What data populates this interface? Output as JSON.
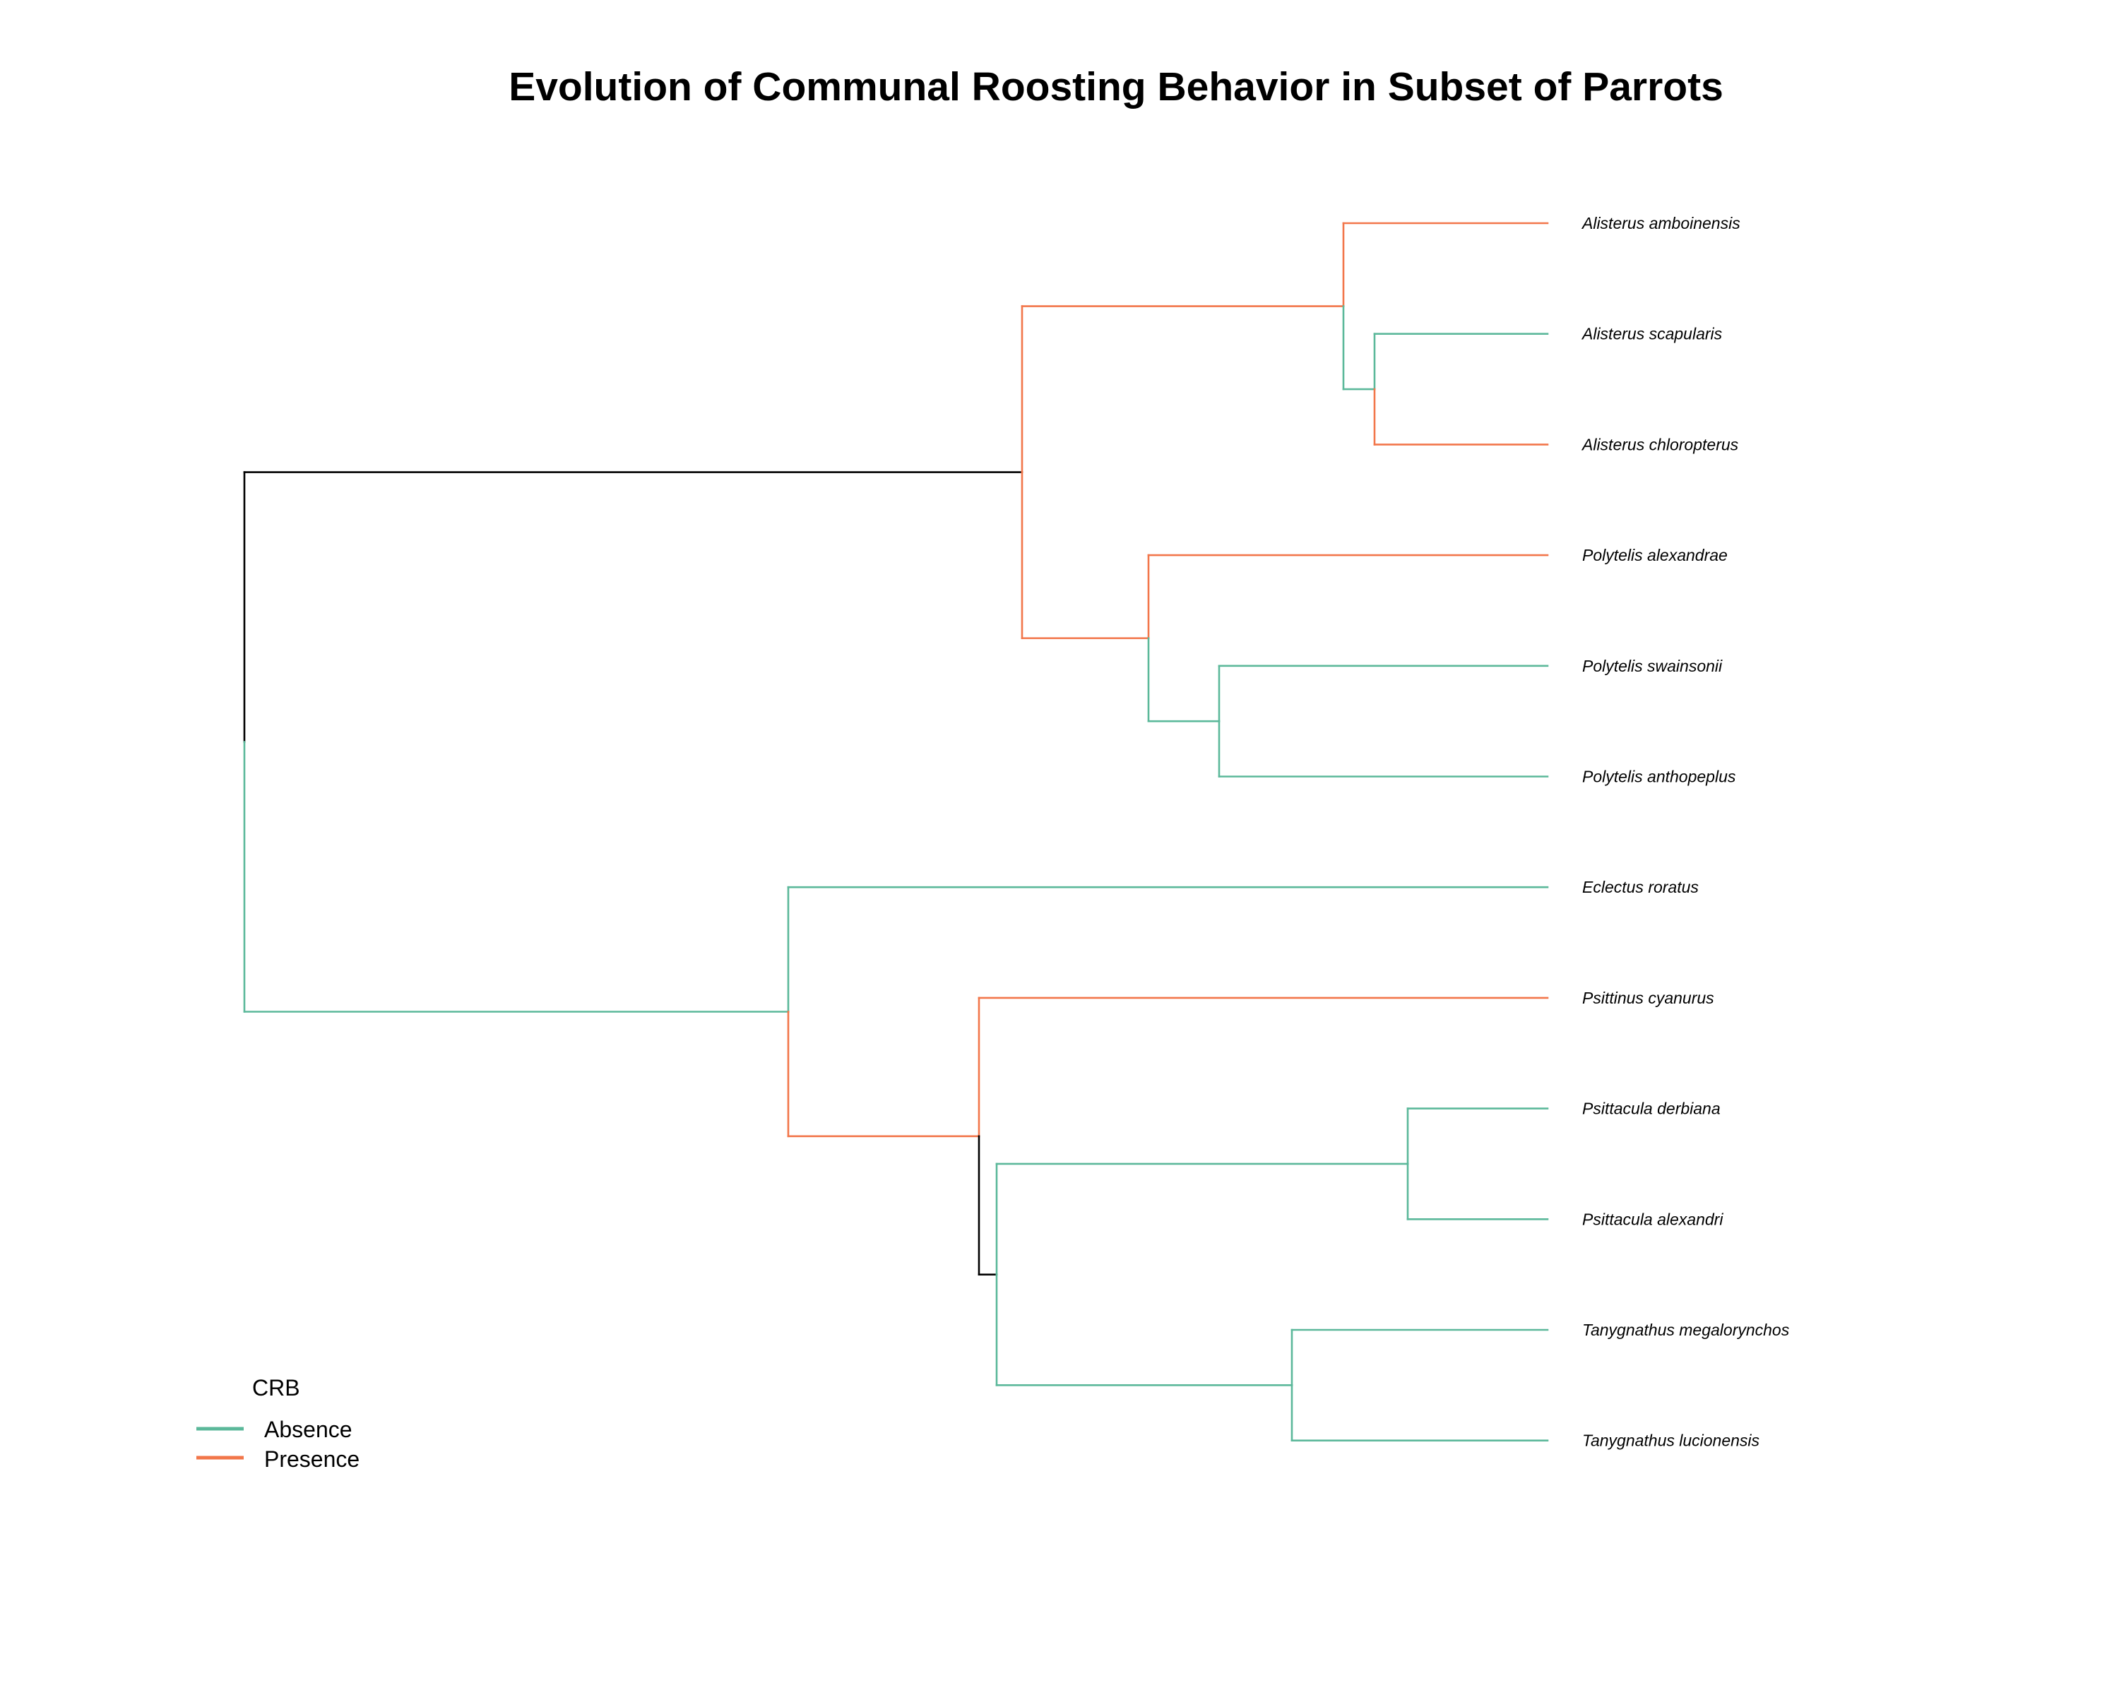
{
  "title": "Evolution of Communal Roosting Behavior in Subset of Parrots",
  "colors": {
    "absence": "#5bb89a",
    "presence": "#f2764a",
    "internal": "#000000"
  },
  "legend": {
    "title": "CRB",
    "items": [
      {
        "label": "Absence",
        "state": "absence"
      },
      {
        "label": "Presence",
        "state": "presence"
      }
    ]
  },
  "tips": [
    {
      "id": "t1",
      "label": "Alisterus amboinensis"
    },
    {
      "id": "t2",
      "label": "Alisterus scapularis"
    },
    {
      "id": "t3",
      "label": "Alisterus chloropterus"
    },
    {
      "id": "t4",
      "label": "Polytelis alexandrae"
    },
    {
      "id": "t5",
      "label": "Polytelis swainsonii"
    },
    {
      "id": "t6",
      "label": "Polytelis anthopeplus"
    },
    {
      "id": "t7",
      "label": "Eclectus roratus"
    },
    {
      "id": "t8",
      "label": "Psittinus cyanurus"
    },
    {
      "id": "t9",
      "label": "Psittacula derbiana"
    },
    {
      "id": "t10",
      "label": "Psittacula alexandri"
    },
    {
      "id": "t11",
      "label": "Tanygnathus megalorynchos"
    },
    {
      "id": "t12",
      "label": "Tanygnathus lucionensis"
    }
  ],
  "tree": {
    "state": "internal",
    "children": [
      {
        "state": "internal",
        "children": [
          {
            "state": "presence",
            "children": [
              {
                "tip": "t1",
                "state": "presence"
              },
              {
                "state": "absence",
                "children": [
                  {
                    "tip": "t2",
                    "state": "absence"
                  },
                  {
                    "tip": "t3",
                    "state": "presence"
                  }
                ]
              }
            ]
          },
          {
            "state": "presence",
            "children": [
              {
                "tip": "t4",
                "state": "presence"
              },
              {
                "state": "absence",
                "children": [
                  {
                    "tip": "t5",
                    "state": "absence"
                  },
                  {
                    "tip": "t6",
                    "state": "absence"
                  }
                ]
              }
            ]
          }
        ]
      },
      {
        "state": "absence",
        "children": [
          {
            "tip": "t7",
            "state": "absence"
          },
          {
            "state": "presence",
            "children": [
              {
                "tip": "t8",
                "state": "presence"
              },
              {
                "state": "internal",
                "children": [
                  {
                    "state": "absence",
                    "children": [
                      {
                        "tip": "t9",
                        "state": "absence"
                      },
                      {
                        "tip": "t10",
                        "state": "absence"
                      }
                    ]
                  },
                  {
                    "state": "absence",
                    "children": [
                      {
                        "tip": "t11",
                        "state": "absence"
                      },
                      {
                        "tip": "t12",
                        "state": "absence"
                      }
                    ]
                  }
                ]
              }
            ]
          }
        ]
      }
    ]
  }
}
